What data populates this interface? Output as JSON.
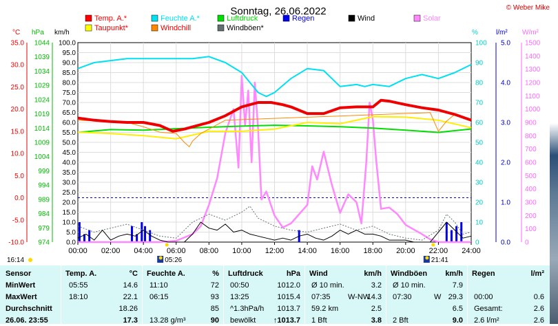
{
  "title": "Sonntag, 26.06.2022",
  "copyright": "© Weber Mike",
  "legend": [
    {
      "label": "Temp. A.*",
      "color": "#ff0000"
    },
    {
      "label": "Feuchte A.*",
      "color": "#00e0f0"
    },
    {
      "label": "Luftdruck",
      "color": "#00dd00"
    },
    {
      "label": "Regen",
      "color": "#0000ee"
    },
    {
      "label": "Wind",
      "color": "#000000"
    },
    {
      "label": "Solar",
      "color": "#ff88ff"
    },
    {
      "label": "Taupunkt*",
      "color": "#ffff00"
    },
    {
      "label": "Windchill",
      "color": "#ff8800"
    },
    {
      "label": "Windböen*",
      "color": "#607070"
    }
  ],
  "axis_units": {
    "celsius": "°C",
    "hpa": "hPa",
    "kmh": "km/h",
    "percent": "%",
    "rain": "l/m²",
    "solar": "W/m²"
  },
  "axis_ticks": {
    "celsius": [
      "35.0",
      "30.0",
      "25.0",
      "20.0",
      "15.0",
      "10.0",
      "5.0",
      "0.0",
      "-5.0",
      "-10.0"
    ],
    "hpa": [
      "1044",
      "1039",
      "1034",
      "1029",
      "1024",
      "1019",
      "1014",
      "1009",
      "1004",
      "999",
      "994",
      "989",
      "984",
      "979",
      "974"
    ],
    "kmh": [
      "100.0",
      "95.0",
      "90.0",
      "85.0",
      "80.0",
      "75.0",
      "70.0",
      "65.0",
      "60.0",
      "55.0",
      "50.0",
      "45.0",
      "40.0",
      "35.0",
      "30.0",
      "25.0",
      "20.0",
      "15.0",
      "10.0",
      "5.0",
      "0.0"
    ],
    "percent": [
      "100",
      "90",
      "80",
      "70",
      "60",
      "50",
      "40",
      "30",
      "20",
      "10",
      "0"
    ],
    "rain": [
      "5.0",
      "4.0",
      "3.0",
      "2.0",
      "1.0",
      "0.0"
    ],
    "solar": [
      "1500",
      "1400",
      "1300",
      "1200",
      "1100",
      "1000",
      "900",
      "800",
      "700",
      "600",
      "500",
      "400",
      "300",
      "200",
      "100",
      "0"
    ]
  },
  "time_labels": [
    "00:00",
    "02:00",
    "04:00",
    "06:00",
    "08:00",
    "10:00",
    "12:00",
    "14:00",
    "16:00",
    "18:00",
    "20:00",
    "22:00",
    "24:00"
  ],
  "sun_times": {
    "rise": "05:26",
    "set": "21:41",
    "left_time": "16:14"
  },
  "chart_data": {
    "type": "line",
    "x_range": [
      0,
      24
    ],
    "ylim_kmh": [
      0,
      100
    ],
    "ylim_celsius": [
      -10,
      35
    ],
    "ylim_percent": [
      0,
      100
    ],
    "ylim_rain": [
      0,
      5
    ],
    "ylim_solar": [
      0,
      1500
    ],
    "series": [
      {
        "name": "Temp. A.*",
        "axis": "celsius",
        "x": [
          0,
          1,
          2,
          3,
          4,
          5,
          5.8,
          6.5,
          7,
          8,
          9,
          10,
          11,
          11.8,
          12.5,
          13,
          14,
          15,
          16,
          17,
          18,
          18.5,
          19,
          20,
          21,
          22,
          23,
          24
        ],
        "y": [
          18.0,
          17.5,
          17.2,
          17.0,
          17.0,
          16.3,
          15.0,
          15.5,
          16.0,
          17.0,
          18.5,
          20.5,
          21.5,
          21.5,
          21.0,
          20.5,
          19.0,
          19.0,
          20.3,
          20.5,
          20.5,
          22.0,
          21.8,
          21.0,
          20.3,
          19.8,
          18.8,
          17.5
        ]
      },
      {
        "name": "Taupunkt*",
        "axis": "celsius",
        "x": [
          0,
          2,
          4,
          6,
          8,
          10,
          12,
          14,
          16,
          18,
          20,
          22,
          24
        ],
        "y": [
          14.8,
          14.5,
          14.0,
          13.3,
          15.0,
          15.0,
          15.5,
          17.0,
          16.7,
          18.3,
          18.2,
          17.5,
          15.8
        ]
      },
      {
        "name": "Luftdruck",
        "axis": "hpa",
        "x": [
          0,
          2,
          4,
          6,
          8,
          10,
          12,
          14,
          16,
          18,
          20,
          22,
          24
        ],
        "y": [
          1012.5,
          1013.5,
          1013.3,
          1013.8,
          1014.3,
          1014.7,
          1015.0,
          1014.8,
          1014.5,
          1014.0,
          1013.3,
          1012.5,
          1013.7
        ]
      },
      {
        "name": "Feuchte A.*",
        "axis": "percent",
        "x": [
          0,
          1,
          2,
          3,
          4,
          5,
          6,
          7,
          8,
          9,
          10,
          10.5,
          11,
          11.5,
          12,
          13,
          14,
          15,
          16,
          17,
          17.5,
          18,
          19,
          20,
          21,
          22,
          23,
          24
        ],
        "y": [
          87,
          90,
          91,
          92,
          92,
          92,
          92,
          92,
          93,
          90,
          85,
          80,
          75,
          73,
          75,
          82,
          87,
          86,
          78,
          79,
          78,
          79,
          78,
          82,
          84,
          82,
          85,
          89
        ]
      },
      {
        "name": "Windchill",
        "axis": "celsius",
        "x": [
          0,
          3,
          4,
          5,
          6,
          6.5,
          6.8,
          7,
          7.5,
          8,
          9,
          21.5,
          22,
          22.5,
          23
        ],
        "y": [
          17.5,
          17.0,
          16.0,
          14.8,
          14.5,
          12.5,
          11.5,
          12.8,
          14.5,
          15.5,
          17.5,
          19.2,
          15.0,
          17.3,
          18.8
        ]
      },
      {
        "name": "Solar",
        "axis": "solar",
        "x": [
          0,
          5,
          6,
          7,
          7.5,
          8,
          8.5,
          9,
          9.5,
          9.8,
          10,
          10.2,
          10.4,
          10.6,
          10.8,
          11,
          11.2,
          11.5,
          12,
          12.5,
          13,
          13.5,
          14,
          14.3,
          14.6,
          15,
          15.5,
          16,
          16.5,
          17,
          17.3,
          17.6,
          17.8,
          18,
          18.2,
          18.5,
          19,
          19.5,
          20,
          21,
          21.5,
          22,
          23,
          24
        ],
        "y": [
          0,
          0,
          10,
          60,
          120,
          280,
          480,
          820,
          1000,
          560,
          1250,
          880,
          1140,
          600,
          1200,
          850,
          320,
          380,
          200,
          110,
          140,
          210,
          280,
          570,
          470,
          680,
          430,
          220,
          360,
          300,
          140,
          600,
          1050,
          920,
          620,
          250,
          260,
          210,
          130,
          60,
          20,
          0,
          0,
          0
        ]
      },
      {
        "name": "Wind",
        "axis": "kmh",
        "x": [
          0,
          0.5,
          1,
          1.5,
          2,
          2.5,
          3,
          3.5,
          4,
          4.5,
          5,
          5.5,
          6,
          6.5,
          7,
          7.5,
          8,
          8.5,
          9,
          9.5,
          10,
          10.5,
          11,
          11.5,
          12,
          12.5,
          13,
          13.5,
          14,
          14.5,
          15,
          15.5,
          16,
          16.5,
          17,
          17.5,
          18,
          18.5,
          19,
          19.5,
          20,
          20.5,
          21,
          21.5,
          22,
          22.5,
          23,
          23.5,
          24
        ],
        "y": [
          2,
          4,
          1,
          6,
          1,
          3,
          4,
          3,
          6,
          3,
          1,
          0,
          0,
          0,
          4,
          10,
          7,
          6,
          9,
          5,
          6,
          4,
          3,
          2,
          1,
          2,
          1,
          3,
          4,
          2,
          1,
          3,
          6,
          4,
          6,
          4,
          4,
          3,
          1,
          1,
          1,
          0,
          0,
          0,
          5,
          10,
          6,
          2,
          3
        ]
      },
      {
        "name": "Windböen*",
        "axis": "kmh",
        "x": [
          0,
          1,
          2,
          3,
          4,
          5,
          6,
          7,
          8,
          9,
          10,
          10.5,
          11,
          12,
          13,
          14,
          15,
          16,
          17,
          18,
          19,
          20,
          21,
          22,
          22.5,
          23,
          23.5,
          24
        ],
        "y": [
          8,
          5,
          7,
          9,
          6,
          3,
          2,
          10,
          14,
          11,
          15,
          18,
          12,
          8,
          6,
          5,
          7,
          9,
          6,
          8,
          4,
          2,
          1,
          6,
          14,
          10,
          4,
          5
        ]
      },
      {
        "name": "Regen",
        "axis": "rain",
        "x": [
          0.1,
          0.4,
          0.7,
          3.3,
          3.6,
          3.9,
          4.1,
          4.4,
          13.5,
          22.5,
          22.8,
          23.1,
          23.4
        ],
        "y": [
          0.5,
          0.2,
          0.3,
          0.4,
          0.2,
          0.5,
          0.4,
          0.3,
          0.3,
          0.5,
          0.3,
          0.4,
          0.5
        ]
      }
    ]
  },
  "stats": {
    "headers": {
      "sensor": "Sensor",
      "temp": "Temp. A.",
      "temp_unit": "°C",
      "feuchte": "Feuchte A.",
      "feuchte_unit": "%",
      "luft": "Luftdruck",
      "luft_unit": "hPa",
      "wind": "Wind",
      "wind_unit": "km/h",
      "boeen": "Windböen",
      "boeen_unit": "km/h",
      "regen": "Regen",
      "regen_unit": "l/m²"
    },
    "rows": [
      {
        "label": "MinWert",
        "temp_t": "05:55",
        "temp_v": "14.6",
        "feu_t": "11:10",
        "feu_v": "72",
        "luft_t": "00:50",
        "luft_v": "1012.0",
        "wind_t": "Ø 10 min.",
        "wind_d": "",
        "wind_v": "3.2",
        "boe_t": "Ø 10 min.",
        "boe_d": "",
        "boe_v": "7.9",
        "reg_t": "",
        "reg_v": ""
      },
      {
        "label": "MaxWert",
        "temp_t": "18:10",
        "temp_v": "22.1",
        "feu_t": "06:15",
        "feu_v": "93",
        "luft_t": "13:25",
        "luft_v": "1015.4",
        "wind_t": "07:35",
        "wind_d": "W-NW",
        "wind_v": "14.3",
        "boe_t": "07:30",
        "boe_d": "W",
        "boe_v": "29.3",
        "reg_t": "00:00",
        "reg_v": "0.6"
      },
      {
        "label": "Durchschnitt",
        "temp_t": "",
        "temp_v": "18.26",
        "feu_t": "",
        "feu_v": "85",
        "luft_t": "^1.3hPa/h",
        "luft_v": "1013.7",
        "wind_t": "59.2 km",
        "wind_d": "",
        "wind_v": "2.5",
        "boe_t": "",
        "boe_d": "",
        "boe_v": "6.5",
        "reg_t": "Gesamt:",
        "reg_v": "2.6"
      },
      {
        "label": "26.06. 23:55",
        "temp_t": "",
        "temp_v": "17.3",
        "feu_t": "13.28 g/m³",
        "feu_v": "90",
        "luft_t": "bewölkt",
        "luft_v": "↑1013.7",
        "wind_t": "1 Bft",
        "wind_d": "",
        "wind_v": "3.8",
        "boe_t": "2 Bft",
        "boe_d": "",
        "boe_v": "9.0",
        "reg_t": "2.6 l/m²",
        "reg_v": "2.6"
      }
    ]
  }
}
